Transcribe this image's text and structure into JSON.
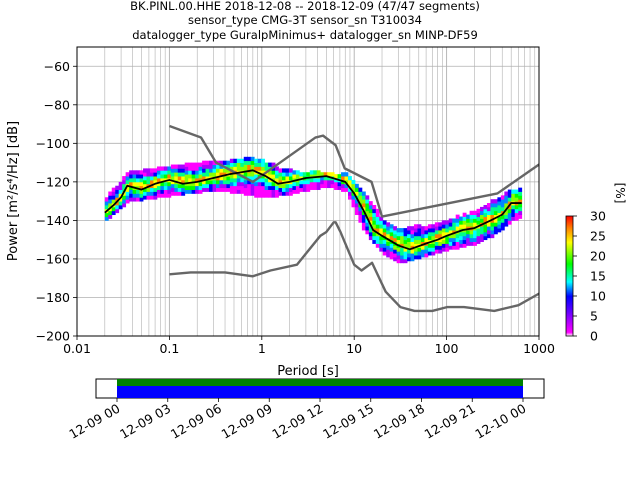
{
  "title_lines": [
    "BK.PINL.00.HHE   2018-12-08 -- 2018-12-09  (47/47 segments)",
    "sensor_type CMG-3T sensor_sn T310034",
    "datalogger_type GuralpMinimus+ datalogger_sn MINP-DF59"
  ],
  "chart_data": {
    "type": "heatmap",
    "xlabel": "Period [s]",
    "ylabel": "Power [m²/s⁴/Hz] [dB]",
    "xscale": "log",
    "xlim": [
      0.01,
      1000
    ],
    "ylim": [
      -200,
      -50
    ],
    "x_ticks": [
      0.01,
      0.1,
      1,
      10,
      100,
      1000
    ],
    "x_tick_labels": [
      "0.01",
      "0.1",
      "1",
      "10",
      "100",
      "1000"
    ],
    "y_ticks": [
      -200,
      -180,
      -160,
      -140,
      -120,
      -100,
      -80,
      -60
    ],
    "y_tick_labels": [
      "−200",
      "−180",
      "−160",
      "−140",
      "−120",
      "−100",
      "−80",
      "−60"
    ],
    "grid": true,
    "colorbar": {
      "label": "[%]",
      "min": 0,
      "max": 30,
      "ticks": [
        0,
        5,
        10,
        15,
        20,
        25,
        30
      ],
      "colors": [
        "#ffffff",
        "#ff00ff",
        "#0000ff",
        "#00ffff",
        "#00ff00",
        "#ffff00",
        "#ff8000",
        "#ff0000"
      ]
    },
    "series": [
      {
        "name": "",
        "kind": "noise_model_high",
        "color": "#666666",
        "points": [
          [
            0.1,
            -91
          ],
          [
            0.22,
            -97
          ],
          [
            0.32,
            -110
          ],
          [
            0.8,
            -120
          ],
          [
            3.8,
            -97
          ],
          [
            4.6,
            -96
          ],
          [
            6.3,
            -101
          ],
          [
            7.9,
            -113
          ],
          [
            15.4,
            -120
          ],
          [
            20,
            -138
          ],
          [
            354.8,
            -126
          ],
          [
            1000,
            -111
          ]
        ]
      },
      {
        "name": "",
        "kind": "noise_model_low",
        "color": "#666666",
        "points": [
          [
            0.1,
            -168
          ],
          [
            0.17,
            -167
          ],
          [
            0.4,
            -167
          ],
          [
            0.8,
            -169
          ],
          [
            1.24,
            -166
          ],
          [
            2.4,
            -163
          ],
          [
            4.3,
            -148
          ],
          [
            5,
            -146
          ],
          [
            6,
            -141
          ],
          [
            6.3,
            -141
          ],
          [
            7.1,
            -146
          ],
          [
            10,
            -163
          ],
          [
            12,
            -166
          ],
          [
            15.6,
            -162
          ],
          [
            21.9,
            -177
          ],
          [
            31.6,
            -185
          ],
          [
            45,
            -187
          ],
          [
            70,
            -187
          ],
          [
            101,
            -185
          ],
          [
            154,
            -185
          ],
          [
            328,
            -187
          ],
          [
            600,
            -184
          ],
          [
            1000,
            -178
          ]
        ]
      },
      {
        "name": "",
        "kind": "mode",
        "color": "#000000",
        "points": [
          [
            0.02,
            -136
          ],
          [
            0.025,
            -132
          ],
          [
            0.03,
            -128
          ],
          [
            0.035,
            -122
          ],
          [
            0.05,
            -124
          ],
          [
            0.07,
            -121
          ],
          [
            0.1,
            -119
          ],
          [
            0.14,
            -121
          ],
          [
            0.2,
            -120
          ],
          [
            0.3,
            -118
          ],
          [
            0.45,
            -116
          ],
          [
            0.6,
            -115
          ],
          [
            0.8,
            -114
          ],
          [
            1.1,
            -117
          ],
          [
            1.5,
            -121
          ],
          [
            2,
            -120
          ],
          [
            3,
            -118
          ],
          [
            5,
            -117
          ],
          [
            8,
            -120
          ],
          [
            10,
            -126
          ],
          [
            13,
            -136
          ],
          [
            16,
            -145
          ],
          [
            20,
            -148
          ],
          [
            30,
            -153
          ],
          [
            40,
            -155
          ],
          [
            60,
            -152
          ],
          [
            80,
            -150
          ],
          [
            100,
            -148
          ],
          [
            150,
            -145
          ],
          [
            200,
            -144
          ],
          [
            300,
            -140
          ],
          [
            400,
            -137
          ],
          [
            500,
            -131
          ],
          [
            650,
            -131
          ]
        ]
      }
    ],
    "heatmap_band": {
      "description_upper": [
        [
          0.02,
          -128
        ],
        [
          0.035,
          -116
        ],
        [
          0.1,
          -113
        ],
        [
          0.3,
          -110
        ],
        [
          0.6,
          -108
        ],
        [
          1,
          -110
        ],
        [
          2,
          -115
        ],
        [
          5,
          -116
        ],
        [
          8,
          -117
        ],
        [
          12,
          -125
        ],
        [
          16,
          -134
        ],
        [
          20,
          -140
        ],
        [
          30,
          -145
        ],
        [
          60,
          -143
        ],
        [
          100,
          -140
        ],
        [
          200,
          -136
        ],
        [
          300,
          -130
        ],
        [
          500,
          -124
        ],
        [
          650,
          -124
        ]
      ],
      "description_lower": [
        [
          0.02,
          -140
        ],
        [
          0.035,
          -130
        ],
        [
          0.1,
          -127
        ],
        [
          0.3,
          -124
        ],
        [
          0.6,
          -126
        ],
        [
          1,
          -128
        ],
        [
          2,
          -126
        ],
        [
          5,
          -122
        ],
        [
          8,
          -125
        ],
        [
          12,
          -144
        ],
        [
          16,
          -152
        ],
        [
          20,
          -157
        ],
        [
          30,
          -162
        ],
        [
          60,
          -158
        ],
        [
          100,
          -155
        ],
        [
          200,
          -152
        ],
        [
          300,
          -148
        ],
        [
          500,
          -140
        ],
        [
          650,
          -138
        ]
      ]
    }
  },
  "timeline": {
    "tick_labels": [
      "12-09 00",
      "12-09 03",
      "12-09 06",
      "12-09 09",
      "12-09 12",
      "12-09 15",
      "12-09 18",
      "12-09 21",
      "12-10 00"
    ],
    "colors": {
      "data": "#0000ff",
      "gap_free": "#008000"
    }
  }
}
